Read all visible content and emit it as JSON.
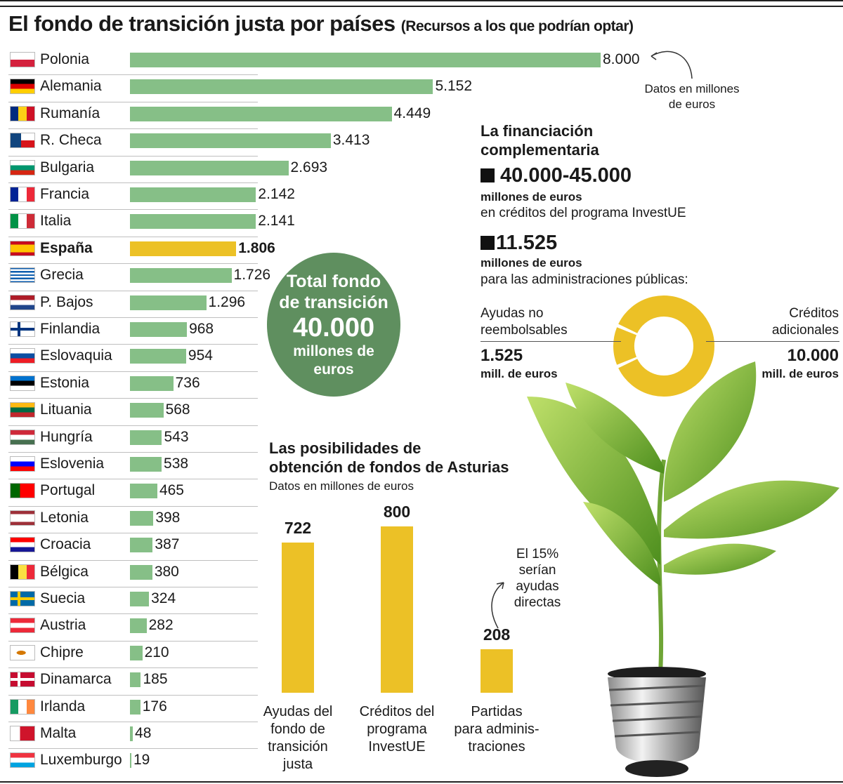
{
  "title": "El fondo de transición justa por países",
  "subtitle": "(Recursos a los que podrían optar)",
  "units_note": "Datos en millones de euros",
  "highlight_color": "#ecc126",
  "bar_color": "#86bf87",
  "circle_color": "#5f8f5f",
  "chart_data": [
    {
      "type": "bar",
      "orientation": "horizontal",
      "title": "El fondo de transición justa por países",
      "subtitle": "(Recursos a los que podrían optar)",
      "categories": [
        "Polonia",
        "Alemania",
        "Rumanía",
        "R. Checa",
        "Bulgaria",
        "Francia",
        "Italia",
        "España",
        "Grecia",
        "P. Bajos",
        "Finlandia",
        "Eslovaquia",
        "Estonia",
        "Lituania",
        "Hungría",
        "Eslovenia",
        "Portugal",
        "Letonia",
        "Croacia",
        "Bélgica",
        "Suecia",
        "Austria",
        "Chipre",
        "Dinamarca",
        "Irlanda",
        "Malta",
        "Luxemburgo"
      ],
      "values": [
        8000,
        5152,
        4449,
        3413,
        2693,
        2142,
        2141,
        1806,
        1726,
        1296,
        968,
        954,
        736,
        568,
        543,
        538,
        465,
        398,
        387,
        380,
        324,
        282,
        210,
        185,
        176,
        48,
        19
      ],
      "value_labels": [
        "8.000",
        "5.152",
        "4.449",
        "3.413",
        "2.693",
        "2.142",
        "2.141",
        "1.806",
        "1.726",
        "1.296",
        "968",
        "954",
        "736",
        "568",
        "543",
        "538",
        "465",
        "398",
        "387",
        "380",
        "324",
        "282",
        "210",
        "185",
        "176",
        "48",
        "19"
      ],
      "highlight": "España",
      "xlim": [
        0,
        8000
      ],
      "grid": false
    },
    {
      "type": "pie",
      "title": "",
      "categories": [
        "Ayudas no reembolsables",
        "Créditos adicionales"
      ],
      "values": [
        1525,
        10000
      ]
    },
    {
      "type": "bar",
      "orientation": "vertical",
      "title": "Las posibilidades de obtención de fondos de Asturias",
      "subtitle": "Datos en millones de euros",
      "categories": [
        "Ayudas del fondo de transición justa",
        "Créditos del programa InvestUE",
        "Partidas para adminis-traciones"
      ],
      "values": [
        722,
        800,
        208
      ],
      "ylim": [
        0,
        800
      ],
      "grid": false
    }
  ],
  "flags": [
    {
      "name": "Polonia",
      "stripes": "h",
      "colors": [
        "#ffffff",
        "#d4213d"
      ]
    },
    {
      "name": "Alemania",
      "stripes": "h",
      "colors": [
        "#000000",
        "#dd0000",
        "#ffce00"
      ]
    },
    {
      "name": "Rumanía",
      "stripes": "v",
      "colors": [
        "#002b7f",
        "#fcd116",
        "#ce1126"
      ]
    },
    {
      "name": "R. Checa",
      "stripes": "czech",
      "colors": [
        "#ffffff",
        "#d7141a",
        "#11457e"
      ]
    },
    {
      "name": "Bulgaria",
      "stripes": "h",
      "colors": [
        "#ffffff",
        "#00966e",
        "#d62612"
      ]
    },
    {
      "name": "Francia",
      "stripes": "v",
      "colors": [
        "#002395",
        "#ffffff",
        "#ed2939"
      ]
    },
    {
      "name": "Italia",
      "stripes": "v",
      "colors": [
        "#009246",
        "#ffffff",
        "#ce2b37"
      ]
    },
    {
      "name": "España",
      "stripes": "h3",
      "colors": [
        "#c60b1e",
        "#ffc400",
        "#c60b1e"
      ]
    },
    {
      "name": "Grecia",
      "stripes": "h9",
      "colors": [
        "#0d5eaf",
        "#ffffff"
      ]
    },
    {
      "name": "P. Bajos",
      "stripes": "h",
      "colors": [
        "#ae1c28",
        "#ffffff",
        "#21468b"
      ]
    },
    {
      "name": "Finlandia",
      "stripes": "nordic",
      "colors": [
        "#ffffff",
        "#003580"
      ]
    },
    {
      "name": "Eslovaquia",
      "stripes": "h",
      "colors": [
        "#ffffff",
        "#0b4ea2",
        "#ee1c25"
      ]
    },
    {
      "name": "Estonia",
      "stripes": "h",
      "colors": [
        "#0072ce",
        "#000000",
        "#ffffff"
      ]
    },
    {
      "name": "Lituania",
      "stripes": "h",
      "colors": [
        "#fdb913",
        "#006a44",
        "#c1272d"
      ]
    },
    {
      "name": "Hungría",
      "stripes": "h",
      "colors": [
        "#ce2939",
        "#ffffff",
        "#477050"
      ]
    },
    {
      "name": "Eslovenia",
      "stripes": "h",
      "colors": [
        "#ffffff",
        "#0000ff",
        "#ff0000"
      ]
    },
    {
      "name": "Portugal",
      "stripes": "v2",
      "colors": [
        "#006600",
        "#ff0000"
      ]
    },
    {
      "name": "Letonia",
      "stripes": "h3",
      "colors": [
        "#9e3039",
        "#ffffff",
        "#9e3039"
      ]
    },
    {
      "name": "Croacia",
      "stripes": "h",
      "colors": [
        "#ff0000",
        "#ffffff",
        "#171796"
      ]
    },
    {
      "name": "Bélgica",
      "stripes": "v",
      "colors": [
        "#000000",
        "#fae042",
        "#ed2939"
      ]
    },
    {
      "name": "Suecia",
      "stripes": "nordic",
      "colors": [
        "#006aa7",
        "#fecc00"
      ]
    },
    {
      "name": "Austria",
      "stripes": "h",
      "colors": [
        "#ed2939",
        "#ffffff",
        "#ed2939"
      ]
    },
    {
      "name": "Chipre",
      "stripes": "plain",
      "colors": [
        "#ffffff",
        "#d57800"
      ]
    },
    {
      "name": "Dinamarca",
      "stripes": "nordic",
      "colors": [
        "#c60c30",
        "#ffffff"
      ]
    },
    {
      "name": "Irlanda",
      "stripes": "v",
      "colors": [
        "#169b62",
        "#ffffff",
        "#ff883e"
      ]
    },
    {
      "name": "Malta",
      "stripes": "v2",
      "colors": [
        "#ffffff",
        "#cf142b"
      ]
    },
    {
      "name": "Luxemburgo",
      "stripes": "h",
      "colors": [
        "#ef3340",
        "#ffffff",
        "#00a3e0"
      ]
    }
  ],
  "total_circle": {
    "line1": "Total fondo",
    "line2": "de transición",
    "amount": "40.000",
    "line4": "millones de",
    "line5": "euros"
  },
  "complementary": {
    "heading1": "La financiación",
    "heading2": "complementaria",
    "amount1": "40.000-45.000",
    "amount1_unit": "millones de euros",
    "amount1_desc": "en créditos del programa InvestUE",
    "amount2": "11.525",
    "amount2_unit": "millones de euros",
    "amount2_desc": "para las administraciones públicas:",
    "left_label1": "Ayudas no",
    "left_label2": "reembolsables",
    "left_value": "1.525",
    "left_unit": "mill. de euros",
    "right_label1": "Créditos",
    "right_label2": "adicionales",
    "right_value": "10.000",
    "right_unit": "mill. de euros"
  },
  "asturias": {
    "heading1": "Las posibilidades de",
    "heading2": "obtención de fondos de Asturias",
    "sub": "Datos en millones de euros",
    "values_labels": [
      "722",
      "800",
      "208"
    ],
    "labels": [
      [
        "Ayudas del",
        "fondo de",
        "transición",
        "justa"
      ],
      [
        "Créditos del",
        "programa",
        "InvestUE"
      ],
      [
        "Partidas",
        "para adminis-",
        "traciones"
      ]
    ],
    "annotation": [
      "El 15%",
      "serían",
      "ayudas",
      "directas"
    ]
  },
  "datos_note": [
    "Datos en millones",
    "de euros"
  ]
}
